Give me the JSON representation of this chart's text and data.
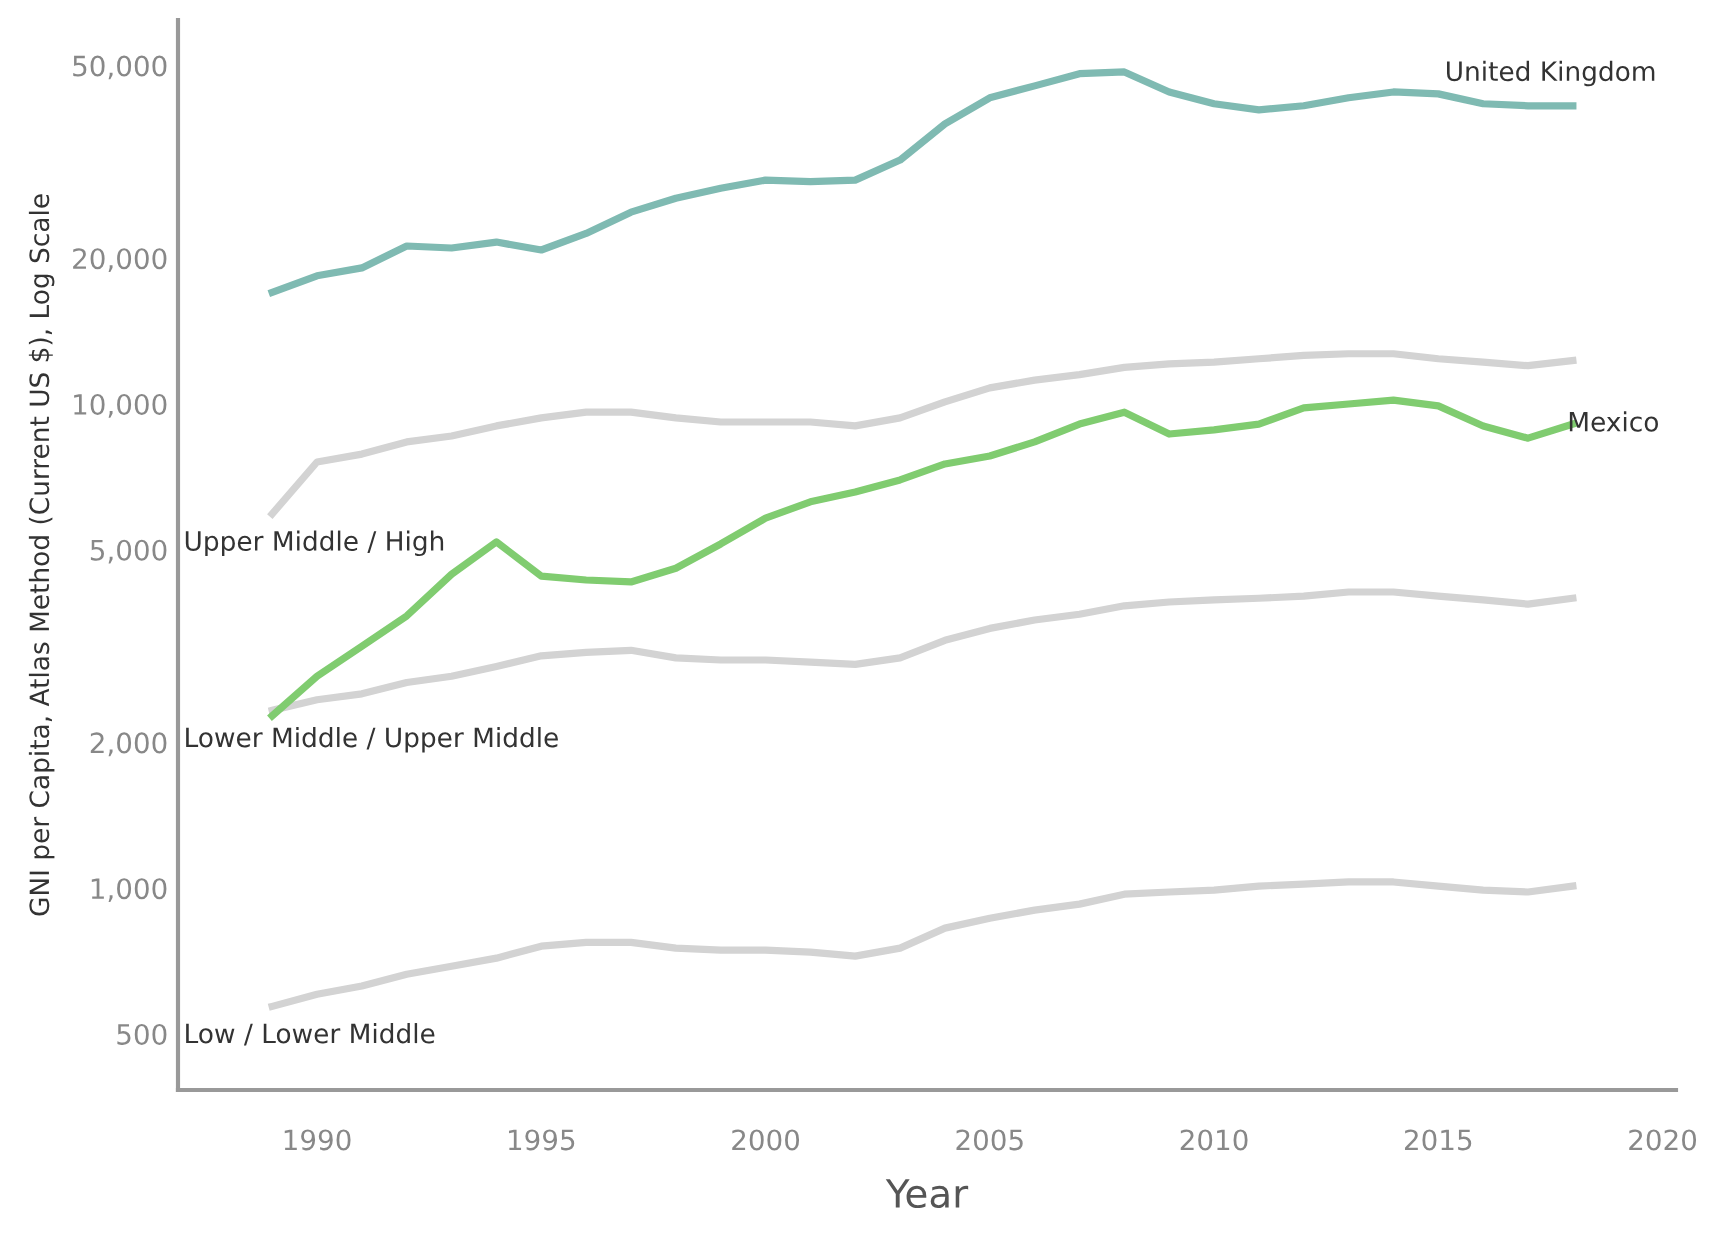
{
  "chart_data": {
    "type": "line",
    "xlabel": "Year",
    "ylabel": "GNI per Capita, Atlas Method (Current US $), Log Scale",
    "log": "y",
    "grid": false,
    "legend": false,
    "marker": "none",
    "line_style": "solid",
    "x": [
      1989,
      1990,
      1991,
      1992,
      1993,
      1994,
      1995,
      1996,
      1997,
      1998,
      1999,
      2000,
      2001,
      2002,
      2003,
      2004,
      2005,
      2006,
      2007,
      2008,
      2009,
      2010,
      2011,
      2012,
      2013,
      2014,
      2015,
      2016,
      2017,
      2018
    ],
    "xlim": [
      1986.9,
      2020.3
    ],
    "xticks": [
      1990,
      1995,
      2000,
      2005,
      2010,
      2015,
      2020
    ],
    "ylim": [
      383,
      62100
    ],
    "yticks": [
      {
        "value": 500,
        "label": "500"
      },
      {
        "value": 1000,
        "label": "1,000"
      },
      {
        "value": 2000,
        "label": "2,000"
      },
      {
        "value": 5000,
        "label": "5,000"
      },
      {
        "value": 10000,
        "label": "10,000"
      },
      {
        "value": 20000,
        "label": "20,000"
      },
      {
        "value": 50000,
        "label": "50,000"
      }
    ],
    "series": [
      {
        "name": "United Kingdom",
        "color": "#7fbab2",
        "values": [
          17000,
          18400,
          19100,
          21200,
          21000,
          21600,
          20800,
          22500,
          24900,
          26600,
          27900,
          29000,
          28800,
          29000,
          31900,
          37900,
          42900,
          45400,
          48100,
          48500,
          44100,
          41700,
          40500,
          41300,
          42900,
          44100,
          43700,
          41700,
          41300,
          41300
        ]
      },
      {
        "name": "Mexico",
        "color": "#80cc70",
        "values": [
          2270,
          2740,
          3160,
          3650,
          4450,
          5190,
          4410,
          4330,
          4290,
          4580,
          5140,
          5810,
          6280,
          6580,
          6970,
          7520,
          7810,
          8350,
          9090,
          9620,
          8670,
          8840,
          9090,
          9820,
          10000,
          10190,
          9910,
          9010,
          8500,
          9090
        ]
      },
      {
        "name": "Upper Middle / High",
        "color": "#d3d3d3",
        "values": [
          5930,
          7590,
          7880,
          8350,
          8590,
          9010,
          9360,
          9620,
          9620,
          9360,
          9180,
          9180,
          9180,
          9010,
          9360,
          10100,
          10800,
          11200,
          11500,
          11900,
          12100,
          12200,
          12400,
          12600,
          12700,
          12700,
          12400,
          12200,
          12000,
          12300
        ]
      },
      {
        "name": "Lower Middle / Upper Middle",
        "color": "#d3d3d3",
        "values": [
          2330,
          2450,
          2520,
          2660,
          2740,
          2870,
          3020,
          3070,
          3100,
          2990,
          2960,
          2960,
          2930,
          2900,
          2990,
          3250,
          3440,
          3580,
          3680,
          3830,
          3900,
          3940,
          3970,
          4010,
          4090,
          4090,
          4010,
          3940,
          3860,
          3970
        ]
      },
      {
        "name": "Low / Lower Middle",
        "color": "#d3d3d3",
        "values": [
          570,
          604,
          628,
          664,
          690,
          717,
          759,
          773,
          773,
          752,
          745,
          745,
          738,
          724,
          752,
          827,
          867,
          901,
          927,
          972,
          982,
          991,
          1010,
          1020,
          1030,
          1030,
          1010,
          991,
          982,
          1010
        ]
      }
    ]
  }
}
